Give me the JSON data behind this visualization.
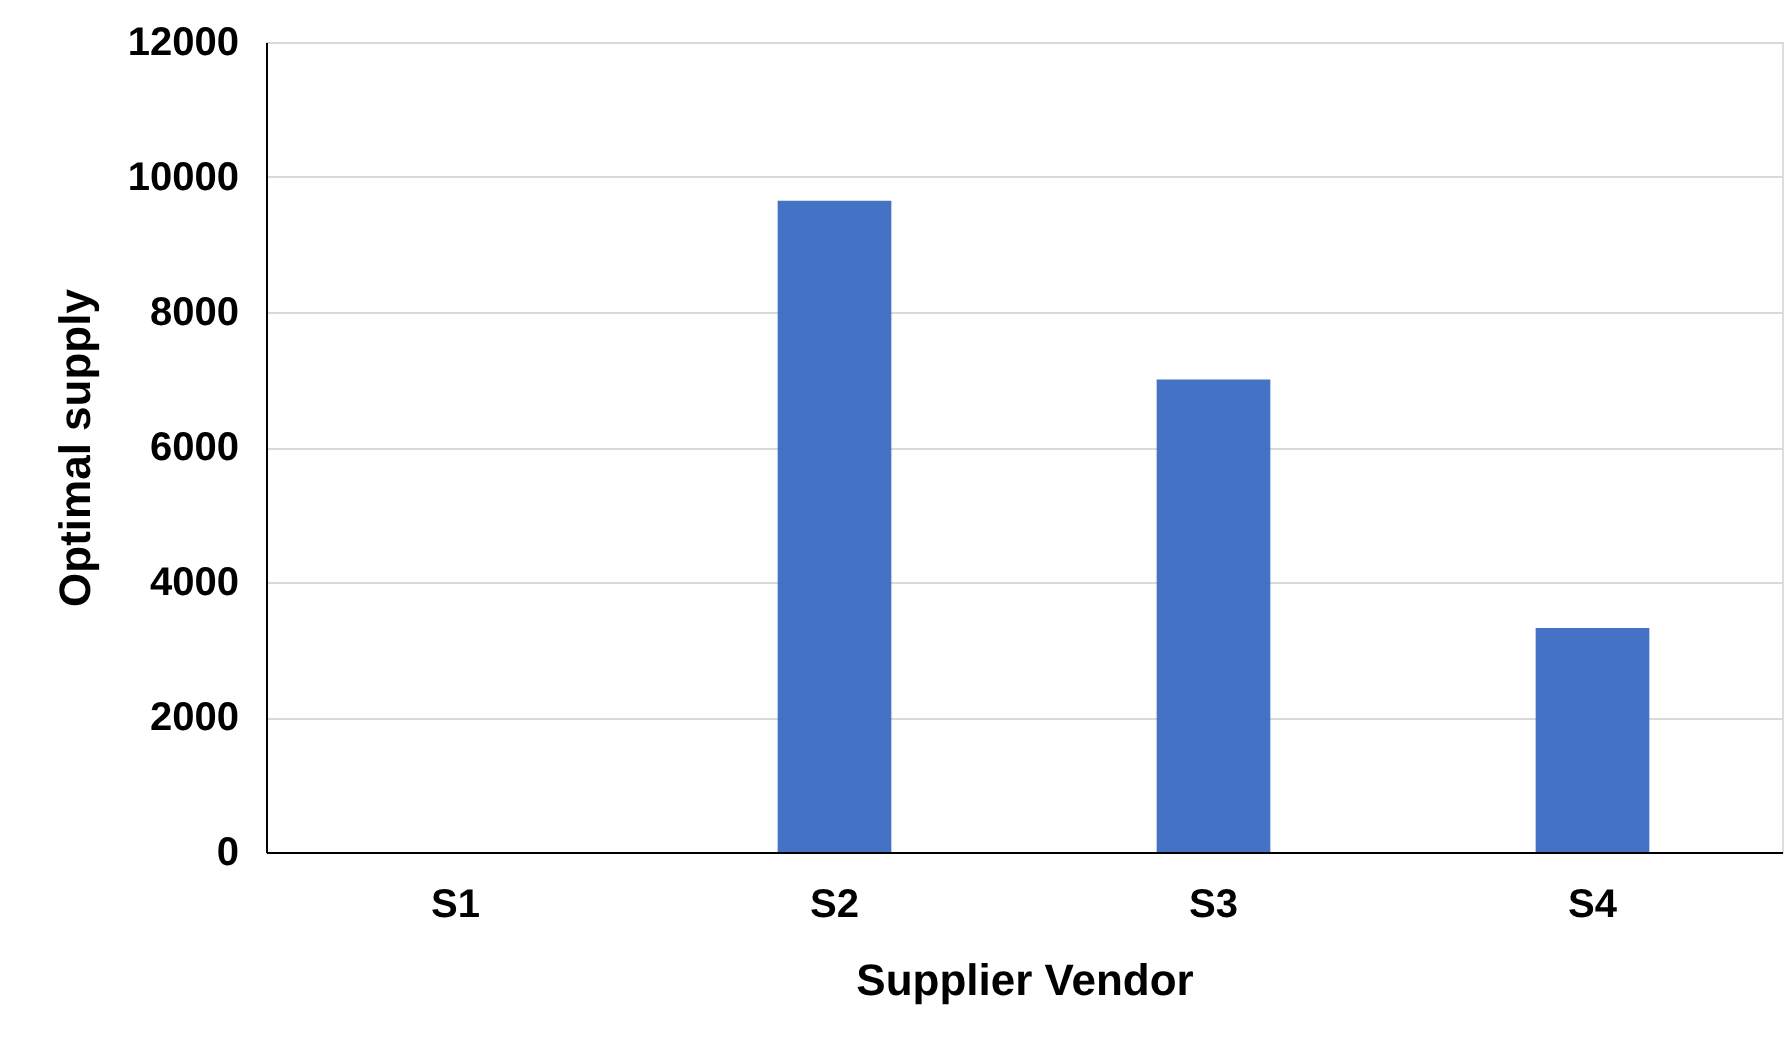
{
  "chart_data": {
    "type": "bar",
    "xlabel": "Supplier Vendor",
    "ylabel": "Optimal supply",
    "categories": [
      "S1",
      "S2",
      "S3",
      "S4"
    ],
    "values": [
      0,
      9650,
      7000,
      3320
    ],
    "color": "#4472c4",
    "ylim": [
      0,
      12000
    ],
    "yticks": [
      0,
      2000,
      4000,
      6000,
      8000,
      10000,
      12000
    ],
    "grid": "y"
  }
}
